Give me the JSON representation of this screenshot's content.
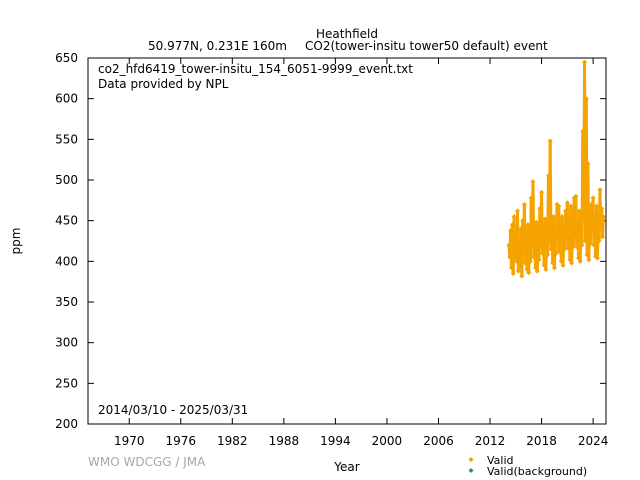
{
  "header": {
    "station": "Heathfield",
    "location": "50.977N, 0.231E 160m",
    "description": "CO2(tower-insitu tower50 default) event"
  },
  "annotations": {
    "filename": "co2_hfd6419_tower-insitu_154_6051-9999_event.txt",
    "provider": "Data provided by NPL",
    "period": "2014/03/10 - 2025/03/31",
    "credit": "WMO WDCGG / JMA"
  },
  "legend": {
    "items": [
      {
        "label": "Valid",
        "color": "#f5a300"
      },
      {
        "label": "Valid(background)",
        "color": "#2e8b7a"
      }
    ]
  },
  "chart_data": {
    "type": "scatter",
    "xlabel": "Year",
    "ylabel": "ppm",
    "xlim": [
      1965.2,
      2025.5
    ],
    "ylim": [
      200,
      650
    ],
    "xticks": [
      1970,
      1976,
      1982,
      1988,
      1994,
      2000,
      2006,
      2012,
      2018,
      2024
    ],
    "yticks": [
      200,
      250,
      300,
      350,
      400,
      450,
      500,
      550,
      600,
      650
    ],
    "grid": false,
    "legend_position": "bottom-right",
    "series": [
      {
        "name": "Valid",
        "color": "#f5a300",
        "points": [
          [
            2014.2,
            420
          ],
          [
            2014.3,
            405
          ],
          [
            2014.4,
            438
          ],
          [
            2014.5,
            392
          ],
          [
            2014.6,
            445
          ],
          [
            2014.7,
            385
          ],
          [
            2014.8,
            455
          ],
          [
            2014.9,
            410
          ],
          [
            2015.0,
            430
          ],
          [
            2015.1,
            400
          ],
          [
            2015.2,
            462
          ],
          [
            2015.3,
            388
          ],
          [
            2015.4,
            425
          ],
          [
            2015.5,
            395
          ],
          [
            2015.6,
            440
          ],
          [
            2015.7,
            382
          ],
          [
            2015.8,
            450
          ],
          [
            2015.9,
            415
          ],
          [
            2016.0,
            470
          ],
          [
            2016.1,
            398
          ],
          [
            2016.2,
            428
          ],
          [
            2016.3,
            390
          ],
          [
            2016.4,
            445
          ],
          [
            2016.5,
            386
          ],
          [
            2016.6,
            435
          ],
          [
            2016.7,
            400
          ],
          [
            2016.8,
            478
          ],
          [
            2016.9,
            418
          ],
          [
            2017.0,
            498
          ],
          [
            2017.1,
            405
          ],
          [
            2017.2,
            432
          ],
          [
            2017.3,
            392
          ],
          [
            2017.4,
            448
          ],
          [
            2017.5,
            388
          ],
          [
            2017.6,
            426
          ],
          [
            2017.7,
            402
          ],
          [
            2017.8,
            465
          ],
          [
            2017.9,
            420
          ],
          [
            2018.0,
            485
          ],
          [
            2018.1,
            410
          ],
          [
            2018.2,
            440
          ],
          [
            2018.3,
            395
          ],
          [
            2018.4,
            452
          ],
          [
            2018.5,
            390
          ],
          [
            2018.6,
            430
          ],
          [
            2018.7,
            408
          ],
          [
            2018.8,
            505
          ],
          [
            2018.9,
            425
          ],
          [
            2019.0,
            548
          ],
          [
            2019.1,
            415
          ],
          [
            2019.2,
            445
          ],
          [
            2019.3,
            398
          ],
          [
            2019.4,
            455
          ],
          [
            2019.5,
            392
          ],
          [
            2019.6,
            432
          ],
          [
            2019.7,
            410
          ],
          [
            2019.8,
            470
          ],
          [
            2019.9,
            428
          ],
          [
            2020.0,
            468
          ],
          [
            2020.1,
            412
          ],
          [
            2020.2,
            440
          ],
          [
            2020.3,
            400
          ],
          [
            2020.4,
            455
          ],
          [
            2020.5,
            395
          ],
          [
            2020.6,
            438
          ],
          [
            2020.7,
            415
          ],
          [
            2020.8,
            462
          ],
          [
            2020.9,
            430
          ],
          [
            2021.0,
            472
          ],
          [
            2021.1,
            416
          ],
          [
            2021.2,
            445
          ],
          [
            2021.3,
            402
          ],
          [
            2021.4,
            468
          ],
          [
            2021.5,
            398
          ],
          [
            2021.6,
            440
          ],
          [
            2021.7,
            418
          ],
          [
            2021.8,
            478
          ],
          [
            2021.9,
            432
          ],
          [
            2022.0,
            480
          ],
          [
            2022.1,
            418
          ],
          [
            2022.2,
            446
          ],
          [
            2022.3,
            404
          ],
          [
            2022.4,
            462
          ],
          [
            2022.5,
            400
          ],
          [
            2022.6,
            442
          ],
          [
            2022.7,
            420
          ],
          [
            2022.8,
            560
          ],
          [
            2022.9,
            450
          ],
          [
            2023.0,
            645
          ],
          [
            2023.1,
            425
          ],
          [
            2023.2,
            600
          ],
          [
            2023.3,
            408
          ],
          [
            2023.4,
            520
          ],
          [
            2023.5,
            402
          ],
          [
            2023.6,
            448
          ],
          [
            2023.7,
            422
          ],
          [
            2023.8,
            470
          ],
          [
            2023.9,
            440
          ],
          [
            2024.0,
            478
          ],
          [
            2024.1,
            420
          ],
          [
            2024.2,
            450
          ],
          [
            2024.3,
            406
          ],
          [
            2024.4,
            468
          ],
          [
            2024.5,
            404
          ],
          [
            2024.6,
            445
          ],
          [
            2024.7,
            425
          ],
          [
            2024.8,
            488
          ],
          [
            2024.9,
            440
          ],
          [
            2025.0,
            465
          ],
          [
            2025.1,
            430
          ],
          [
            2025.2,
            455
          ]
        ]
      },
      {
        "name": "Valid(background)",
        "color": "#2e8b7a",
        "points": []
      }
    ]
  }
}
